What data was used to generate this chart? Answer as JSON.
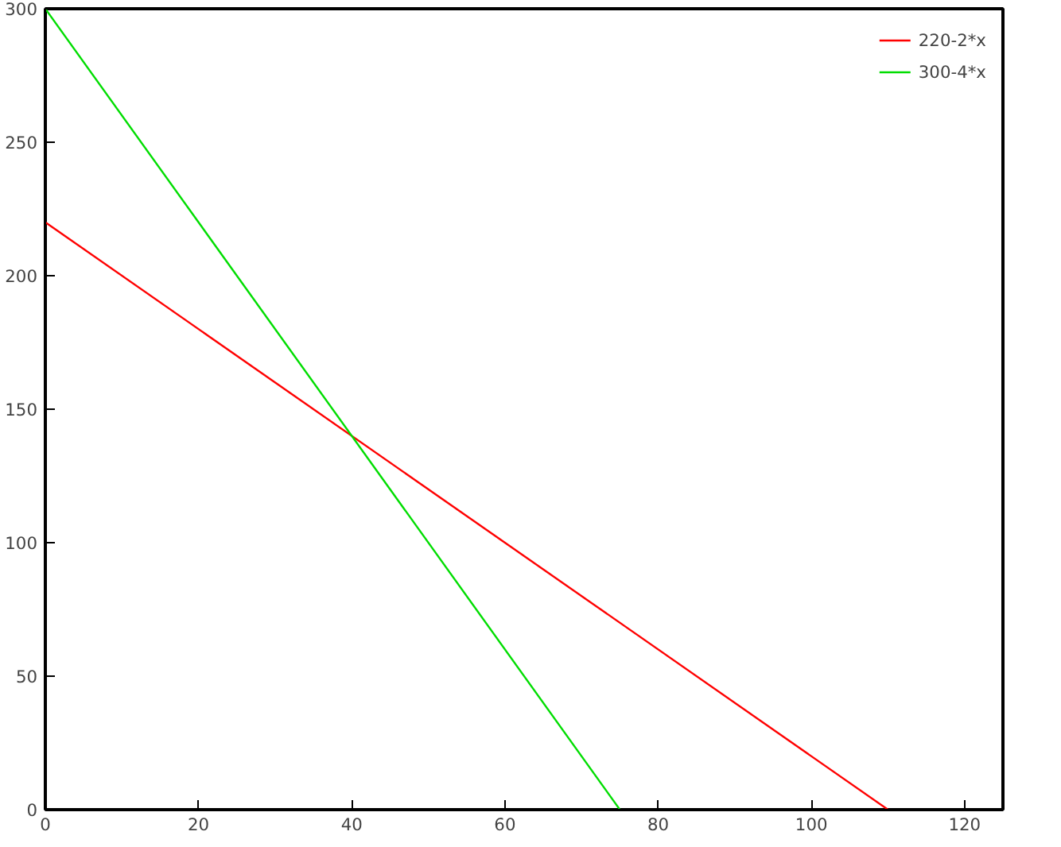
{
  "chart_data": {
    "type": "line",
    "xlim": [
      0,
      125
    ],
    "ylim": [
      0,
      300
    ],
    "xticks": [
      0,
      20,
      40,
      60,
      80,
      100,
      120
    ],
    "yticks": [
      0,
      50,
      100,
      150,
      200,
      250,
      300
    ],
    "grid": false,
    "legend": "top right",
    "marker": "none",
    "line_style": "solid",
    "series": [
      {
        "name": "220-2*x",
        "color": "#ff0000",
        "x": [
          0,
          110
        ],
        "values": [
          220,
          0
        ]
      },
      {
        "name": "300-4*x",
        "color": "#00dd00",
        "x": [
          0,
          75
        ],
        "values": [
          300,
          0
        ]
      }
    ]
  }
}
